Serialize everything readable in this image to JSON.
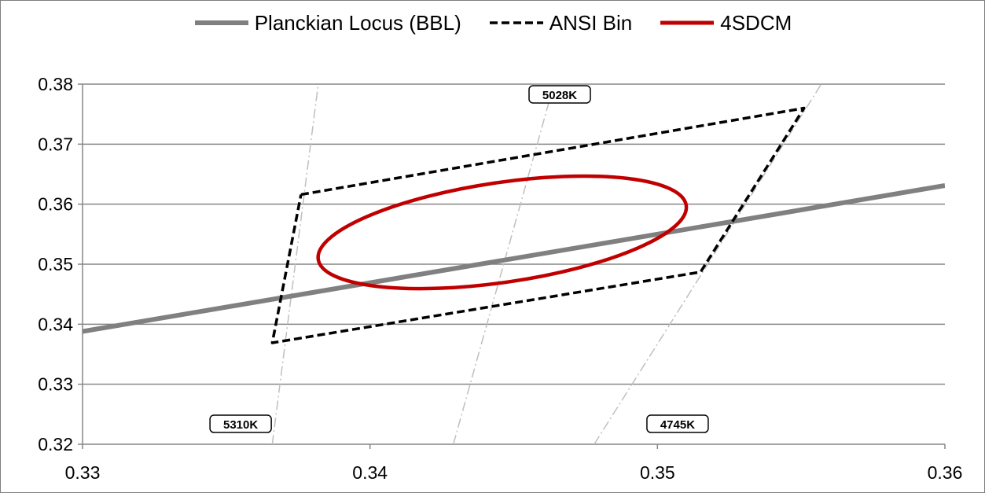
{
  "chart_data": {
    "type": "line",
    "title": "",
    "xlabel": "",
    "ylabel": "",
    "xlim": [
      0.33,
      0.36
    ],
    "ylim": [
      0.32,
      0.38
    ],
    "x_ticks": [
      "0.33",
      "0.34",
      "0.35",
      "0.36"
    ],
    "y_ticks": [
      "0.32",
      "0.33",
      "0.34",
      "0.35",
      "0.36",
      "0.37",
      "0.38"
    ],
    "grid": "horizontal",
    "legend_position": "top",
    "series": [
      {
        "name": "Planckian Locus (BBL)",
        "style": "solid-thick",
        "color": "#808080",
        "points": [
          [
            0.33,
            0.3388
          ],
          [
            0.36,
            0.3631
          ]
        ]
      },
      {
        "name": "ANSI Bin",
        "style": "dashed",
        "color": "#000000",
        "points": [
          [
            0.3376,
            0.3616
          ],
          [
            0.3551,
            0.376
          ],
          [
            0.3515,
            0.3487
          ],
          [
            0.3366,
            0.3369
          ],
          [
            0.3376,
            0.3616
          ]
        ]
      },
      {
        "name": "4SDCM",
        "style": "solid",
        "color": "#c00000",
        "ellipse": {
          "center": [
            0.3446,
            0.3553
          ],
          "points": [
            [
              0.3384,
              0.3491
            ],
            [
              0.3404,
              0.3457
            ],
            [
              0.3446,
              0.3482
            ],
            [
              0.3489,
              0.3513
            ],
            [
              0.3512,
              0.3581
            ],
            [
              0.349,
              0.3651
            ],
            [
              0.3446,
              0.3637
            ],
            [
              0.34,
              0.36
            ]
          ]
        }
      }
    ],
    "isotherm_lines": [
      {
        "label": "5310K",
        "points": [
          [
            0.3366,
            0.32
          ],
          [
            0.3382,
            0.38
          ]
        ]
      },
      {
        "label": "5028K",
        "points": [
          [
            0.3429,
            0.32
          ],
          [
            0.3464,
            0.38
          ]
        ]
      },
      {
        "label": "4745K",
        "points": [
          [
            0.3478,
            0.32
          ],
          [
            0.3557,
            0.38
          ]
        ]
      }
    ],
    "isotherm_color": "#bfbfbf",
    "grid_color": "#868686"
  }
}
